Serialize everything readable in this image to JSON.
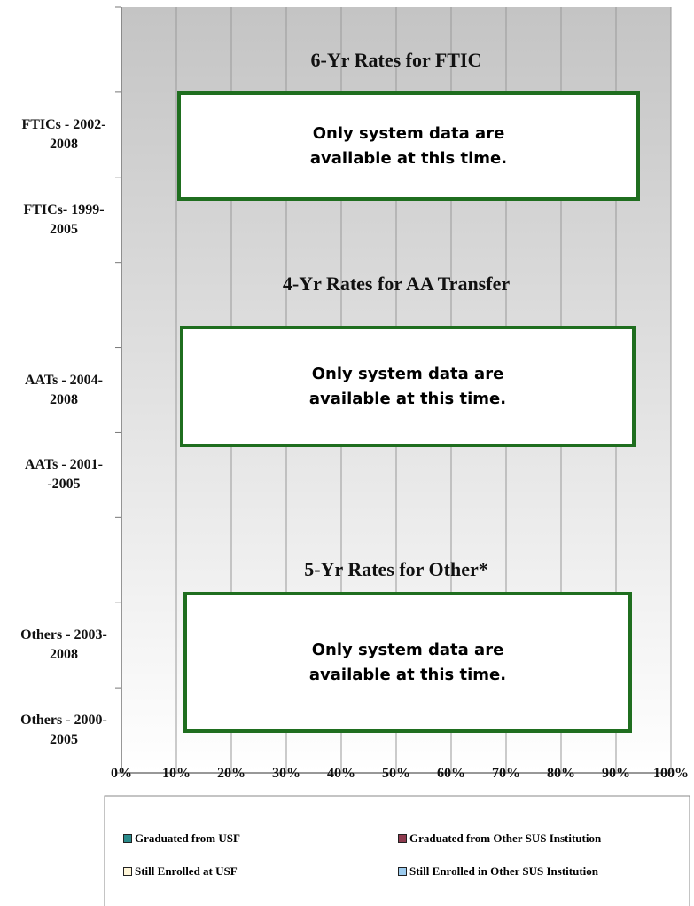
{
  "chart_data": {
    "type": "bar",
    "orientation": "horizontal",
    "categories": [
      null,
      "FTICs - 2002-2008",
      "FTICs- 1999-2005",
      null,
      "AATs - 2004-2008",
      "AATs - 2001--2005",
      null,
      "Others - 2003-2008",
      "Others - 2000-2005"
    ],
    "series": [
      {
        "name": "Graduated from USF",
        "color": "#2a8a8a",
        "values": [
          null,
          null,
          null,
          null,
          null,
          null,
          null,
          null,
          null
        ]
      },
      {
        "name": "Graduated from Other SUS Institution",
        "color": "#8e3a4e",
        "values": [
          null,
          null,
          null,
          null,
          null,
          null,
          null,
          null,
          null
        ]
      },
      {
        "name": "Still Enrolled at USF",
        "color": "#fff6d8",
        "values": [
          null,
          null,
          null,
          null,
          null,
          null,
          null,
          null,
          null
        ]
      },
      {
        "name": "Still Enrolled in Other SUS Institution",
        "color": "#9ccbee",
        "values": [
          null,
          null,
          null,
          null,
          null,
          null,
          null,
          null,
          null
        ]
      }
    ],
    "xlim": [
      0,
      100
    ],
    "xticks": [
      {
        "value": 0,
        "label": "0%"
      },
      {
        "value": 10,
        "label": "10%"
      },
      {
        "value": 20,
        "label": "20%"
      },
      {
        "value": 30,
        "label": "30%"
      },
      {
        "value": 40,
        "label": "40%"
      },
      {
        "value": 50,
        "label": "50%"
      },
      {
        "value": 60,
        "label": "60%"
      },
      {
        "value": 70,
        "label": "70%"
      },
      {
        "value": 80,
        "label": "80%"
      },
      {
        "value": 90,
        "label": "90%"
      },
      {
        "value": 100,
        "label": "100%"
      }
    ],
    "grid": true,
    "legend": "bottom",
    "annotations": [
      {
        "title": "6-Yr Rates for FTIC",
        "text": "Only system data are available at this time."
      },
      {
        "title": "4-Yr Rates for AA Transfer",
        "text": "Only system data are available at this time."
      },
      {
        "title": "5-Yr Rates for Other*",
        "text": "Only system data are available at this time."
      }
    ]
  }
}
